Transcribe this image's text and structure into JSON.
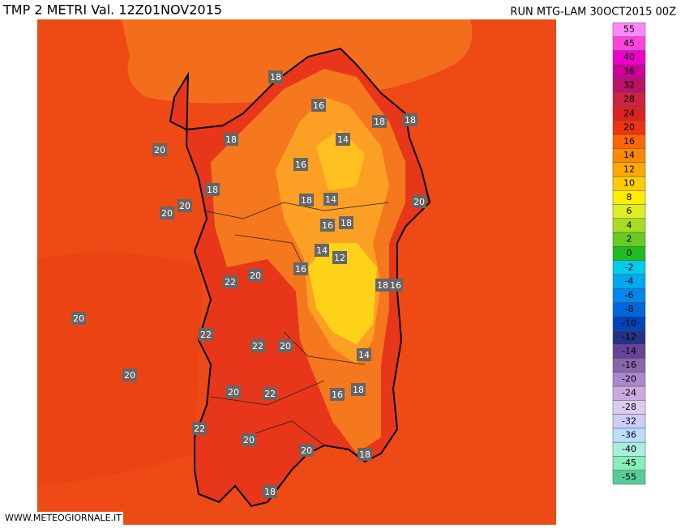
{
  "header": {
    "title": "TMP 2 METRI Val. 12Z01NOV2015",
    "run": "RUN MTG-LAM 30OCT2015 00Z"
  },
  "footer": "WWW.METEOGIORNALE.IT",
  "legend": {
    "levels": [
      {
        "value": 55,
        "color": "#ff88ff"
      },
      {
        "value": 45,
        "color": "#ff44dd"
      },
      {
        "value": 40,
        "color": "#ee00cc"
      },
      {
        "value": 36,
        "color": "#cc0099"
      },
      {
        "value": 32,
        "color": "#bb1166"
      },
      {
        "value": 28,
        "color": "#cc2244"
      },
      {
        "value": 24,
        "color": "#dd2222"
      },
      {
        "value": 20,
        "color": "#ee3311"
      },
      {
        "value": 16,
        "color": "#ff6600"
      },
      {
        "value": 14,
        "color": "#ff8800"
      },
      {
        "value": 12,
        "color": "#ffaa00"
      },
      {
        "value": 10,
        "color": "#ffcc00"
      },
      {
        "value": 8,
        "color": "#ffee00"
      },
      {
        "value": 6,
        "color": "#ddee22"
      },
      {
        "value": 4,
        "color": "#aadd22"
      },
      {
        "value": 2,
        "color": "#66cc22"
      },
      {
        "value": 0,
        "color": "#22bb22"
      },
      {
        "value": -2,
        "color": "#00ccee"
      },
      {
        "value": -4,
        "color": "#00aaee"
      },
      {
        "value": -6,
        "color": "#0088ee"
      },
      {
        "value": -8,
        "color": "#0066dd"
      },
      {
        "value": -10,
        "color": "#0044bb"
      },
      {
        "value": -12,
        "color": "#223388"
      },
      {
        "value": -14,
        "color": "#664499"
      },
      {
        "value": -16,
        "color": "#8866aa"
      },
      {
        "value": -20,
        "color": "#aa88cc"
      },
      {
        "value": -24,
        "color": "#ccaadd"
      },
      {
        "value": -28,
        "color": "#ddccee"
      },
      {
        "value": -32,
        "color": "#ccccff"
      },
      {
        "value": -36,
        "color": "#bbddff"
      },
      {
        "value": -40,
        "color": "#aaeedd"
      },
      {
        "value": -45,
        "color": "#88eebb"
      },
      {
        "value": -55,
        "color": "#55cc99"
      }
    ]
  },
  "map": {
    "contour_labels": [
      18,
      16,
      18,
      18,
      20,
      18,
      14,
      16,
      18,
      18,
      14,
      20,
      20,
      20,
      16,
      18,
      14,
      12,
      16,
      20,
      22,
      18,
      16,
      20,
      22,
      22,
      20,
      14,
      20,
      20,
      22,
      16,
      18,
      22,
      20,
      20,
      18,
      18
    ]
  }
}
